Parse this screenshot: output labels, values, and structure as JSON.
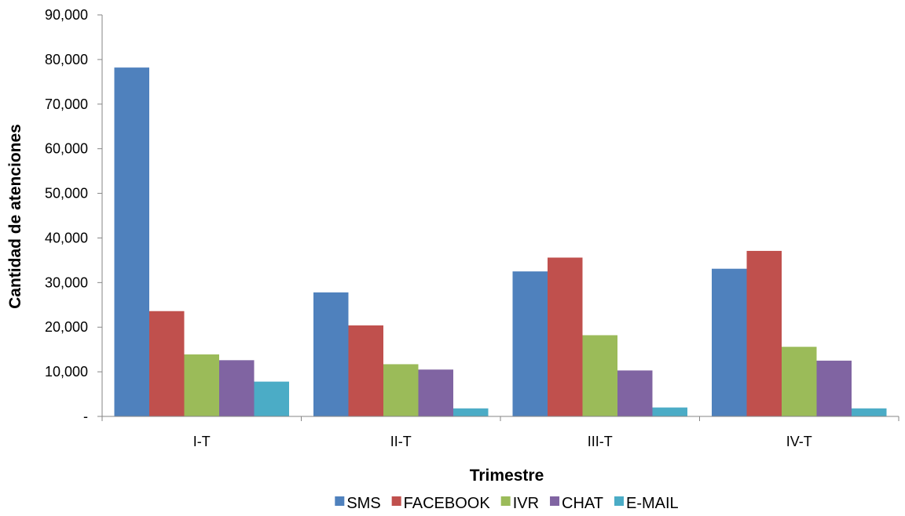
{
  "chart_data": {
    "type": "bar",
    "title": "",
    "xlabel": "Trimestre",
    "ylabel": "Cantidad de atenciones",
    "categories": [
      "I-T",
      "II-T",
      "III-T",
      "IV-T"
    ],
    "ylim": [
      0,
      90000
    ],
    "yticks": [
      "-",
      "10,000",
      "20,000",
      "30,000",
      "40,000",
      "50,000",
      "60,000",
      "70,000",
      "80,000",
      "90,000"
    ],
    "grid": false,
    "legend_position": "bottom",
    "series": [
      {
        "name": "SMS",
        "color": "#4F81BD",
        "values": [
          78200,
          27800,
          32500,
          33100
        ]
      },
      {
        "name": "FACEBOOK",
        "color": "#C0504D",
        "values": [
          23600,
          20400,
          35600,
          37100
        ]
      },
      {
        "name": "IVR",
        "color": "#9BBB59",
        "values": [
          13900,
          11700,
          18200,
          15600
        ]
      },
      {
        "name": "CHAT",
        "color": "#8064A2",
        "values": [
          12600,
          10500,
          10300,
          12500
        ]
      },
      {
        "name": "E-MAIL",
        "color": "#4BACC6",
        "values": [
          7800,
          1800,
          2000,
          1800
        ]
      }
    ]
  }
}
